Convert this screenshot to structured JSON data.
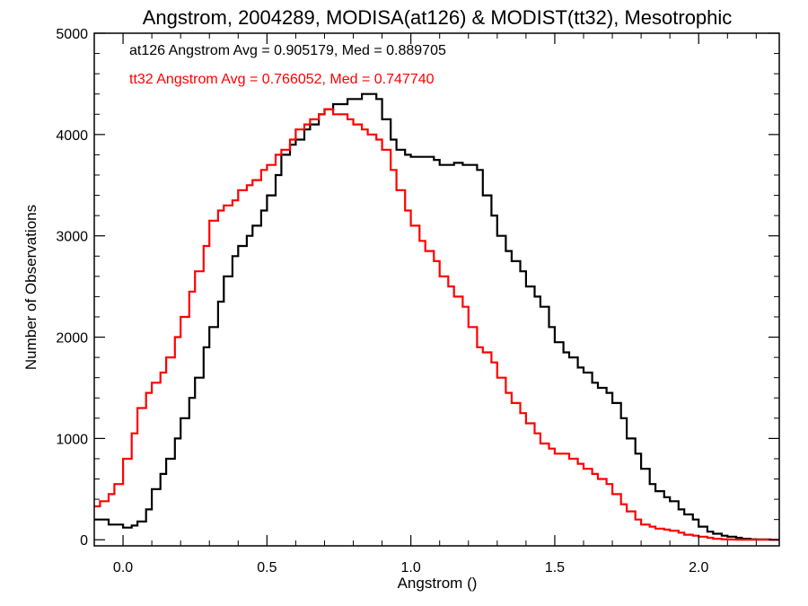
{
  "chart_data": {
    "type": "line",
    "title": "Angstrom, 2004289, MODISA(at126) & MODIST(tt32), Mesotrophic",
    "xlabel": "Angstrom ()",
    "ylabel": "Number of Observations",
    "xlim": [
      -0.1,
      2.28
    ],
    "ylim": [
      -60,
      5000
    ],
    "x_ticks": [
      0.0,
      0.5,
      1.0,
      1.5,
      2.0
    ],
    "x_tick_labels": [
      "0.0",
      "0.5",
      "1.0",
      "1.5",
      "2.0"
    ],
    "y_ticks": [
      0,
      1000,
      2000,
      3000,
      4000,
      5000
    ],
    "y_tick_labels": [
      "0",
      "1000",
      "2000",
      "3000",
      "4000",
      "5000"
    ],
    "grid": false,
    "annotations": [
      {
        "text": "at126 Angstrom Avg = 0.905179, Med = 0.889705",
        "color": "#000000"
      },
      {
        "text": "tt32 Angstrom Avg = 0.766052, Med = 0.747740",
        "color": "#ff0000"
      }
    ],
    "series": [
      {
        "color": "#000000",
        "x": [
          -0.1,
          -0.05,
          0.0,
          0.03,
          0.05,
          0.08,
          0.1,
          0.13,
          0.15,
          0.18,
          0.2,
          0.23,
          0.25,
          0.28,
          0.3,
          0.33,
          0.35,
          0.38,
          0.4,
          0.43,
          0.45,
          0.48,
          0.5,
          0.53,
          0.55,
          0.58,
          0.6,
          0.63,
          0.65,
          0.68,
          0.7,
          0.73,
          0.75,
          0.78,
          0.8,
          0.83,
          0.85,
          0.88,
          0.9,
          0.93,
          0.95,
          0.98,
          1.0,
          1.03,
          1.05,
          1.08,
          1.1,
          1.13,
          1.15,
          1.18,
          1.2,
          1.23,
          1.25,
          1.28,
          1.3,
          1.33,
          1.35,
          1.38,
          1.4,
          1.43,
          1.45,
          1.48,
          1.5,
          1.53,
          1.55,
          1.58,
          1.6,
          1.63,
          1.65,
          1.68,
          1.7,
          1.73,
          1.75,
          1.78,
          1.8,
          1.83,
          1.85,
          1.88,
          1.9,
          1.93,
          1.95,
          1.98,
          2.0,
          2.03,
          2.05,
          2.08,
          2.1,
          2.13,
          2.15,
          2.18,
          2.2,
          2.25,
          2.28
        ],
        "values": [
          200,
          150,
          120,
          140,
          180,
          300,
          500,
          650,
          800,
          1000,
          1200,
          1400,
          1600,
          1900,
          2100,
          2350,
          2600,
          2800,
          2900,
          3000,
          3100,
          3250,
          3400,
          3600,
          3800,
          3900,
          3950,
          4050,
          4100,
          4200,
          4250,
          4300,
          4300,
          4350,
          4350,
          4400,
          4400,
          4350,
          4150,
          3950,
          3850,
          3800,
          3780,
          3780,
          3780,
          3750,
          3700,
          3700,
          3720,
          3700,
          3700,
          3650,
          3400,
          3200,
          3000,
          2850,
          2750,
          2650,
          2500,
          2400,
          2300,
          2100,
          1950,
          1850,
          1800,
          1700,
          1650,
          1550,
          1500,
          1450,
          1350,
          1200,
          1000,
          850,
          700,
          550,
          480,
          420,
          380,
          300,
          250,
          200,
          130,
          80,
          60,
          40,
          30,
          20,
          10,
          5,
          3,
          0,
          0
        ]
      },
      {
        "color": "#ff0000",
        "x": [
          -0.1,
          -0.08,
          -0.05,
          -0.03,
          0.0,
          0.03,
          0.05,
          0.08,
          0.1,
          0.13,
          0.15,
          0.18,
          0.2,
          0.23,
          0.25,
          0.28,
          0.3,
          0.33,
          0.35,
          0.38,
          0.4,
          0.43,
          0.45,
          0.48,
          0.5,
          0.53,
          0.55,
          0.58,
          0.6,
          0.63,
          0.65,
          0.68,
          0.7,
          0.73,
          0.75,
          0.78,
          0.8,
          0.83,
          0.85,
          0.88,
          0.9,
          0.93,
          0.95,
          0.98,
          1.0,
          1.03,
          1.05,
          1.08,
          1.1,
          1.13,
          1.15,
          1.18,
          1.2,
          1.23,
          1.25,
          1.28,
          1.3,
          1.33,
          1.35,
          1.38,
          1.4,
          1.43,
          1.45,
          1.48,
          1.5,
          1.53,
          1.55,
          1.58,
          1.6,
          1.63,
          1.65,
          1.68,
          1.7,
          1.73,
          1.75,
          1.78,
          1.8,
          1.83,
          1.85,
          1.88,
          1.9,
          1.93,
          1.95,
          1.98,
          2.0,
          2.03,
          2.05,
          2.08,
          2.1,
          2.13,
          2.15,
          2.18,
          2.2,
          2.25,
          2.28
        ],
        "values": [
          330,
          380,
          450,
          550,
          800,
          1050,
          1300,
          1450,
          1550,
          1650,
          1800,
          2000,
          2200,
          2450,
          2650,
          2900,
          3150,
          3250,
          3300,
          3350,
          3450,
          3500,
          3550,
          3650,
          3700,
          3800,
          3850,
          3950,
          4050,
          4100,
          4150,
          4200,
          4250,
          4200,
          4200,
          4150,
          4100,
          4050,
          4000,
          3950,
          3850,
          3650,
          3450,
          3250,
          3100,
          2950,
          2850,
          2750,
          2600,
          2500,
          2400,
          2300,
          2100,
          1900,
          1850,
          1750,
          1600,
          1450,
          1350,
          1250,
          1150,
          1050,
          950,
          900,
          850,
          850,
          800,
          750,
          700,
          650,
          600,
          550,
          450,
          350,
          280,
          200,
          150,
          130,
          110,
          100,
          90,
          70,
          50,
          40,
          30,
          20,
          10,
          5,
          3,
          0,
          0,
          0,
          0,
          0,
          0
        ]
      }
    ]
  }
}
